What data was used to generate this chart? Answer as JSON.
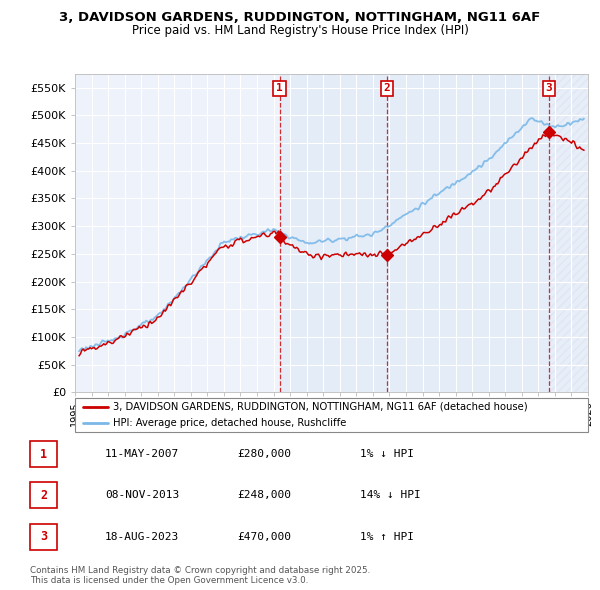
{
  "title_line1": "3, DAVIDSON GARDENS, RUDDINGTON, NOTTINGHAM, NG11 6AF",
  "title_line2": "Price paid vs. HM Land Registry's House Price Index (HPI)",
  "xlim_start": 1995.25,
  "xlim_end": 2026.0,
  "ylim_min": 0,
  "ylim_max": 575000,
  "yticks": [
    0,
    50000,
    100000,
    150000,
    200000,
    250000,
    300000,
    350000,
    400000,
    450000,
    500000,
    550000
  ],
  "ytick_labels": [
    "£0",
    "£50K",
    "£100K",
    "£150K",
    "£200K",
    "£250K",
    "£300K",
    "£350K",
    "£400K",
    "£450K",
    "£500K",
    "£550K"
  ],
  "sale_dates": [
    2007.36,
    2013.85,
    2023.63
  ],
  "sale_prices": [
    280000,
    248000,
    470000
  ],
  "sale_labels": [
    "1",
    "2",
    "3"
  ],
  "hpi_color": "#7ab8e8",
  "price_color": "#cc0000",
  "background_color": "#eef2fa",
  "shade_color": "#dce8f5",
  "hatch_color": "#c8d8ee",
  "legend_label_price": "3, DAVIDSON GARDENS, RUDDINGTON, NOTTINGHAM, NG11 6AF (detached house)",
  "legend_label_hpi": "HPI: Average price, detached house, Rushcliffe",
  "table_data": [
    [
      "1",
      "11-MAY-2007",
      "£280,000",
      "1% ↓ HPI"
    ],
    [
      "2",
      "08-NOV-2013",
      "£248,000",
      "14% ↓ HPI"
    ],
    [
      "3",
      "18-AUG-2023",
      "£470,000",
      "1% ↑ HPI"
    ]
  ],
  "footnote": "Contains HM Land Registry data © Crown copyright and database right 2025.\nThis data is licensed under the Open Government Licence v3.0.",
  "grid_color": "#ffffff",
  "spine_color": "#bbbbbb",
  "fig_width": 6.0,
  "fig_height": 5.9
}
